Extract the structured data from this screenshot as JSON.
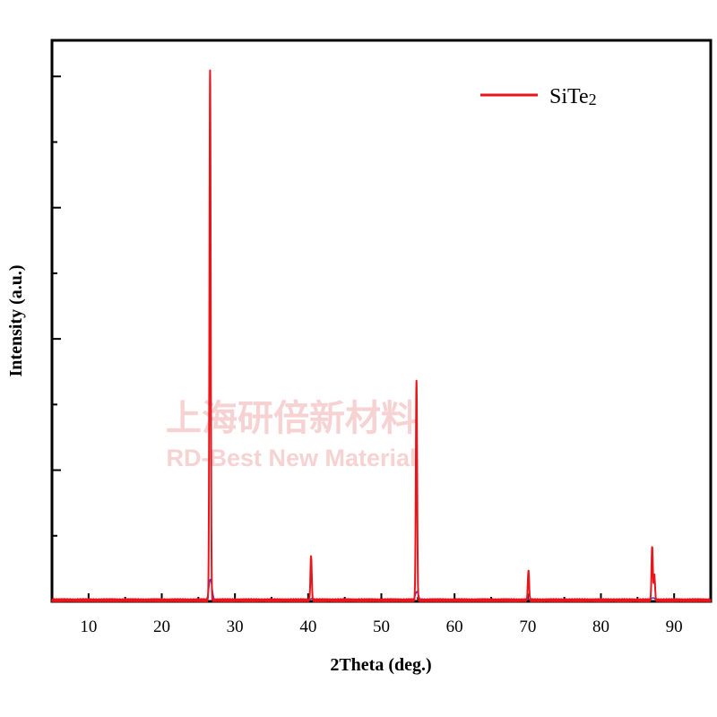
{
  "chart_data": {
    "type": "line",
    "title": "",
    "xlabel": "2Theta (deg.)",
    "ylabel": "Intensity (a.u.)",
    "xlim": [
      5,
      95
    ],
    "ylim": [
      0,
      100
    ],
    "x_ticks": [
      10,
      20,
      30,
      40,
      50,
      60,
      70,
      80,
      90
    ],
    "y_tick_labels_shown": false,
    "grid": false,
    "legend_position": "top-right",
    "series": [
      {
        "name": "SiTe2",
        "color": "#e8161b",
        "baseline": 0.2,
        "peaks": [
          {
            "x": 26.6,
            "y": 94.3
          },
          {
            "x": 40.4,
            "y": 7.9
          },
          {
            "x": 54.8,
            "y": 39.3
          },
          {
            "x": 70.1,
            "y": 5.3
          },
          {
            "x": 87.0,
            "y": 9.7
          },
          {
            "x": 87.3,
            "y": 4.5
          }
        ]
      }
    ],
    "secondary_trace_color": "#3b3bd6"
  },
  "legend": {
    "label_main": "SiTe",
    "label_sub": "2"
  },
  "watermark": {
    "line1": "上海研倍新材料",
    "line2": "RD-Best New Material"
  }
}
